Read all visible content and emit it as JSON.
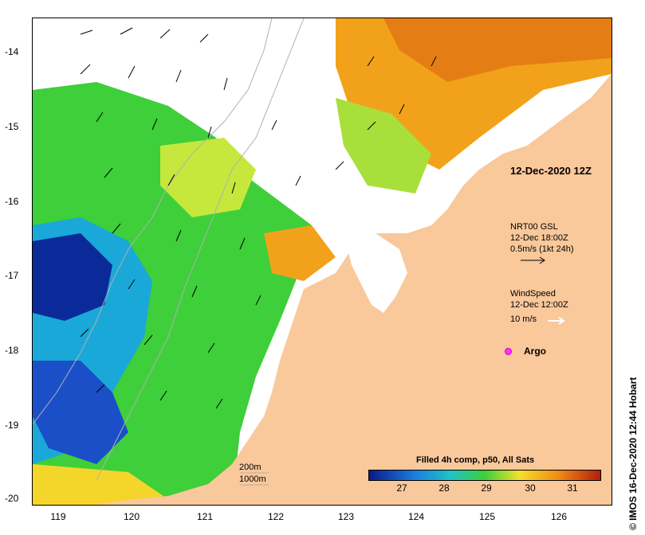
{
  "map": {
    "date_label": "12-Dec-2020 12Z",
    "y_ticks": [
      "-14",
      "-15",
      "-16",
      "-17",
      "-18",
      "-19",
      "-20"
    ],
    "x_ticks": [
      "119",
      "120",
      "121",
      "122",
      "123",
      "124",
      "125",
      "126"
    ],
    "currents": {
      "line1": "NRT00 GSL",
      "line2": "12-Dec 18:00Z",
      "line3": "0.5m/s (1kt 24h)"
    },
    "wind": {
      "line1": "WindSpeed",
      "line2": "12-Dec 12:00Z",
      "line3": "10 m/s"
    },
    "argo_label": "Argo",
    "depth_200": "200m",
    "depth_1000": "1000m",
    "colorbar": {
      "title": "Filled 4h comp, p50, All Sats",
      "labels": [
        "27",
        "28",
        "29",
        "30",
        "31"
      ]
    },
    "credit": "© IMOS 16-Dec-2020 12:44 Hobart",
    "colors": {
      "land": "#f9c89b",
      "cold": "#0a1a8a",
      "warm": "#b21e0a"
    }
  }
}
